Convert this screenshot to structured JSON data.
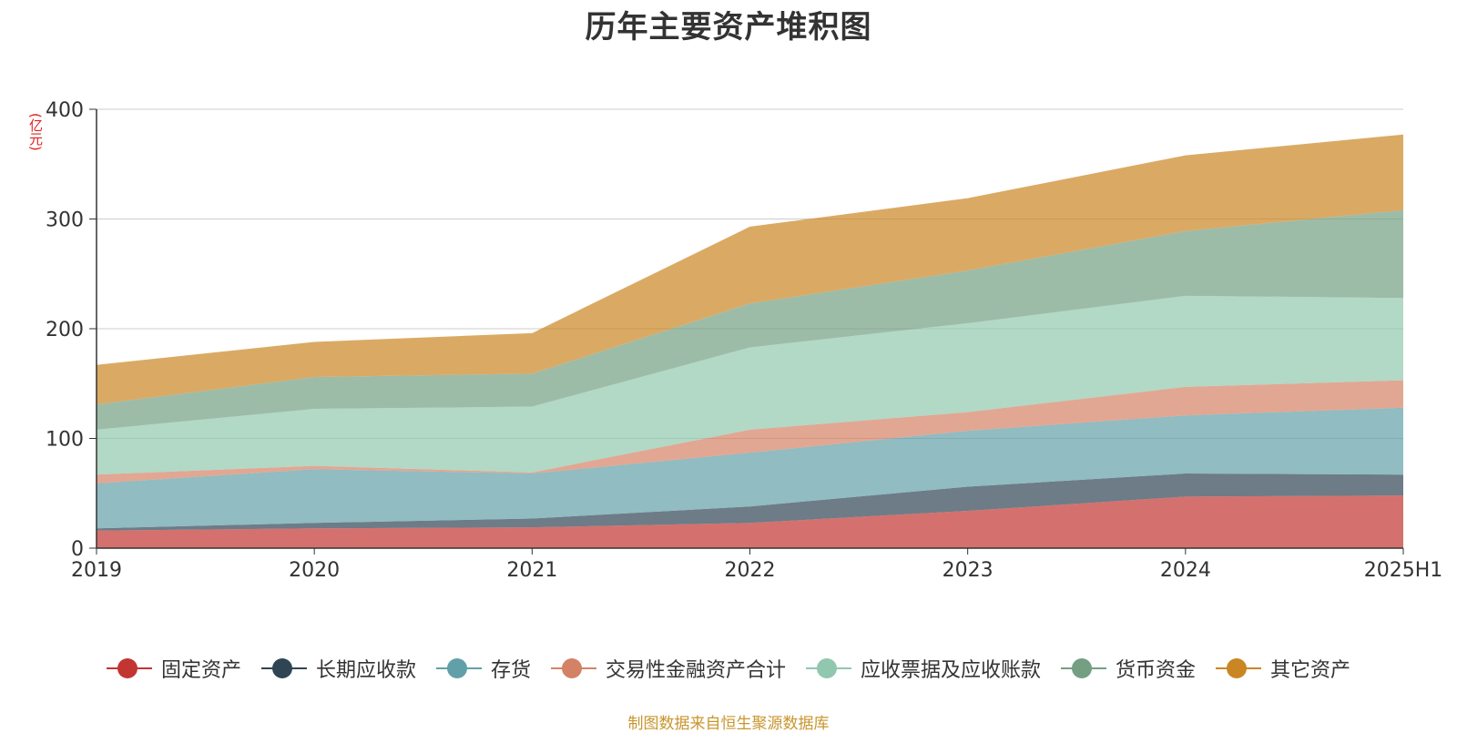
{
  "chart_data": {
    "type": "area",
    "title": "历年主要资产堆积图",
    "unit_label": "(亿元)",
    "x": [
      "2019",
      "2020",
      "2021",
      "2022",
      "2023",
      "2024",
      "2025H1"
    ],
    "ylim": [
      0,
      400
    ],
    "yticks": [
      "0",
      "100",
      "200",
      "300",
      "400"
    ],
    "grid": true,
    "stacked": true,
    "legend_position": "bottom",
    "series": [
      {
        "name": "固定资产",
        "color": "#c23531",
        "values": [
          16,
          18,
          19,
          23,
          34,
          47,
          48
        ]
      },
      {
        "name": "长期应收款",
        "color": "#2f4554",
        "values": [
          2,
          5,
          8,
          15,
          22,
          21,
          19
        ]
      },
      {
        "name": "存货",
        "color": "#61a0a8",
        "values": [
          41,
          49,
          41,
          49,
          51,
          53,
          61
        ]
      },
      {
        "name": "交易性金融资产合计",
        "color": "#d48265",
        "values": [
          8,
          3,
          1,
          21,
          17,
          26,
          25
        ]
      },
      {
        "name": "应收票据及应收账款",
        "color": "#91c7ae",
        "values": [
          41,
          52,
          60,
          75,
          81,
          83,
          75
        ]
      },
      {
        "name": "货币资金",
        "color": "#749f83",
        "values": [
          23,
          29,
          30,
          40,
          48,
          59,
          80
        ]
      },
      {
        "name": "其它资产",
        "color": "#ca8622",
        "values": [
          36,
          32,
          37,
          70,
          66,
          69,
          69
        ]
      }
    ]
  },
  "source_text": "制图数据来自恒生聚源数据库"
}
